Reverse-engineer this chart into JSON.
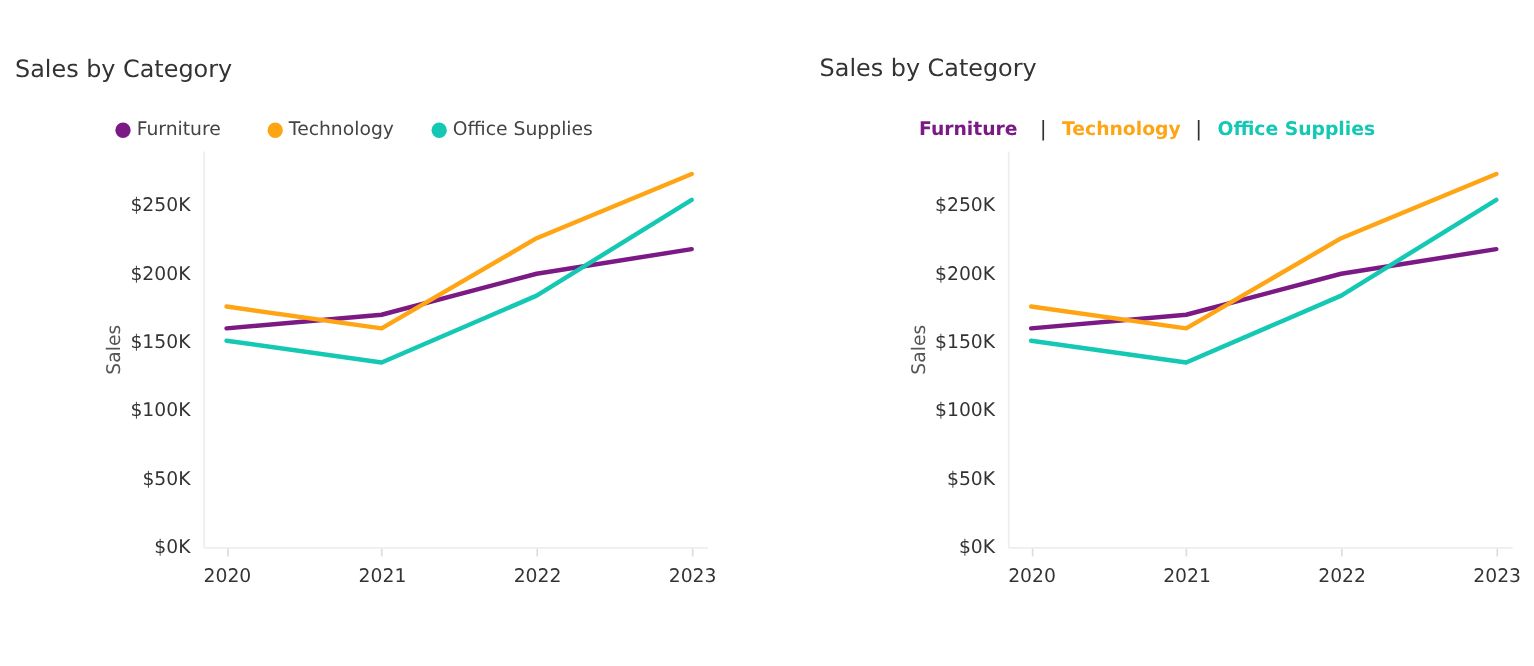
{
  "chart_data": [
    {
      "type": "line",
      "title": "Sales by Category",
      "ylabel": "Sales",
      "categories": [
        "2020",
        "2021",
        "2022",
        "2023"
      ],
      "series": [
        {
          "name": "Furniture",
          "color": "#7b1a84",
          "values": [
            160000,
            170000,
            200000,
            218000
          ]
        },
        {
          "name": "Technology",
          "color": "#ffa514",
          "values": [
            176000,
            160000,
            226000,
            273000
          ]
        },
        {
          "name": "Office Supplies",
          "color": "#14c8b4",
          "values": [
            151000,
            135000,
            184000,
            254000
          ]
        }
      ],
      "ylim": [
        0,
        290000
      ],
      "yticks": [
        {
          "value": 0,
          "label": "$0K"
        },
        {
          "value": 50000,
          "label": "$50K"
        },
        {
          "value": 100000,
          "label": "$100K"
        },
        {
          "value": 150000,
          "label": "$150K"
        },
        {
          "value": 200000,
          "label": "$200K"
        },
        {
          "value": 250000,
          "label": "$250K"
        }
      ],
      "grid": false,
      "legend": "top left",
      "marker": "none",
      "line_style": "solid"
    },
    {
      "type": "line",
      "title": "Sales by Category",
      "ylabel": "Sales",
      "categories": [
        "2020",
        "2021",
        "2022",
        "2023"
      ],
      "series": [
        {
          "name": "Furniture",
          "color": "#7b1a84",
          "values": [
            160000,
            170000,
            200000,
            218000
          ]
        },
        {
          "name": "Technology",
          "color": "#ffa514",
          "values": [
            176000,
            160000,
            226000,
            273000
          ]
        },
        {
          "name": "Office Supplies",
          "color": "#14c8b4",
          "values": [
            151000,
            135000,
            184000,
            254000
          ]
        }
      ],
      "ylim": [
        0,
        290000
      ],
      "yticks": [
        {
          "value": 0,
          "label": "$0K"
        },
        {
          "value": 50000,
          "label": "$50K"
        },
        {
          "value": 100000,
          "label": "$100K"
        },
        {
          "value": 150000,
          "label": "$150K"
        },
        {
          "value": 200000,
          "label": "$200K"
        },
        {
          "value": 250000,
          "label": "$250K"
        }
      ],
      "grid": false,
      "legend": "top left",
      "marker": "none",
      "line_style": "solid"
    }
  ]
}
